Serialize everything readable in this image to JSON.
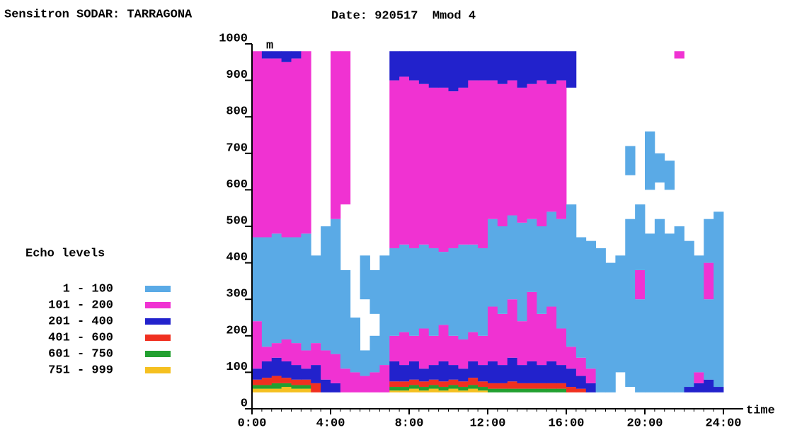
{
  "chart_data": {
    "type": "heatmap",
    "title": "Sensitron SODAR: TARRAGONA",
    "subtitle": "Date: 920517  Mmod 4",
    "y_label": "m",
    "x_label": "time",
    "xlim": [
      0,
      24
    ],
    "xticks": [
      {
        "value": 0,
        "label": "0:00"
      },
      {
        "value": 4,
        "label": "4:00"
      },
      {
        "value": 8,
        "label": "8:00"
      },
      {
        "value": 12,
        "label": "12:00"
      },
      {
        "value": 16,
        "label": "16:00"
      },
      {
        "value": 20,
        "label": "20:00"
      },
      {
        "value": 24,
        "label": "24:00"
      }
    ],
    "ylim": [
      0,
      1000
    ],
    "yticks": [
      0,
      100,
      200,
      300,
      400,
      500,
      600,
      700,
      800,
      900,
      1000
    ],
    "legend": {
      "title": "Echo levels",
      "levels": [
        {
          "name": "1 - 100",
          "color": "#5aaae6"
        },
        {
          "name": "101 - 200",
          "color": "#f032d2"
        },
        {
          "name": "201 - 400",
          "color": "#2222cc"
        },
        {
          "name": "401 - 600",
          "color": "#f03020"
        },
        {
          "name": "601 - 750",
          "color": "#22a030"
        },
        {
          "name": "751 - 999",
          "color": "#f5c020"
        }
      ]
    },
    "x": [
      0,
      0.5,
      1,
      1.5,
      2,
      2.5,
      3,
      3.5,
      4,
      4.5,
      5,
      5.5,
      6,
      6.5,
      7,
      7.5,
      8,
      8.5,
      9,
      9.5,
      10,
      10.5,
      11,
      11.5,
      12,
      12.5,
      13,
      13.5,
      14,
      14.5,
      15,
      15.5,
      16,
      16.5,
      17,
      17.5,
      18,
      18.5,
      19,
      19.5,
      20,
      20.5,
      21,
      21.5,
      22,
      22.5,
      23,
      23.5
    ],
    "segments": [
      [
        [
          5,
          45,
          55
        ],
        [
          4,
          55,
          65
        ],
        [
          3,
          65,
          80
        ],
        [
          2,
          80,
          110
        ],
        [
          1,
          110,
          240
        ],
        [
          0,
          240,
          470
        ],
        [
          1,
          470,
          980
        ]
      ],
      [
        [
          5,
          45,
          55
        ],
        [
          4,
          55,
          65
        ],
        [
          3,
          65,
          85
        ],
        [
          2,
          85,
          130
        ],
        [
          1,
          130,
          170
        ],
        [
          0,
          170,
          470
        ],
        [
          1,
          470,
          960
        ],
        [
          2,
          960,
          980
        ]
      ],
      [
        [
          5,
          45,
          55
        ],
        [
          4,
          55,
          70
        ],
        [
          3,
          70,
          90
        ],
        [
          2,
          90,
          140
        ],
        [
          1,
          140,
          180
        ],
        [
          0,
          180,
          480
        ],
        [
          1,
          480,
          960
        ],
        [
          2,
          960,
          980
        ]
      ],
      [
        [
          5,
          45,
          60
        ],
        [
          4,
          60,
          70
        ],
        [
          3,
          70,
          85
        ],
        [
          2,
          85,
          130
        ],
        [
          1,
          130,
          190
        ],
        [
          0,
          190,
          470
        ],
        [
          1,
          470,
          950
        ],
        [
          2,
          950,
          980
        ]
      ],
      [
        [
          5,
          45,
          55
        ],
        [
          4,
          55,
          65
        ],
        [
          3,
          65,
          80
        ],
        [
          2,
          80,
          120
        ],
        [
          1,
          120,
          180
        ],
        [
          0,
          180,
          470
        ],
        [
          1,
          470,
          960
        ],
        [
          2,
          960,
          980
        ]
      ],
      [
        [
          5,
          45,
          55
        ],
        [
          4,
          55,
          65
        ],
        [
          3,
          65,
          80
        ],
        [
          2,
          80,
          110
        ],
        [
          1,
          110,
          160
        ],
        [
          0,
          160,
          480
        ],
        [
          1,
          480,
          980
        ]
      ],
      [
        [
          3,
          45,
          70
        ],
        [
          2,
          70,
          120
        ],
        [
          1,
          120,
          180
        ],
        [
          0,
          180,
          420
        ]
      ],
      [
        [
          2,
          45,
          80
        ],
        [
          1,
          80,
          160
        ],
        [
          0,
          160,
          500
        ]
      ],
      [
        [
          2,
          45,
          70
        ],
        [
          1,
          70,
          150
        ],
        [
          0,
          150,
          520
        ],
        [
          1,
          520,
          980
        ]
      ],
      [
        [
          1,
          45,
          110
        ],
        [
          0,
          110,
          380
        ],
        [
          1,
          560,
          980
        ]
      ],
      [
        [
          1,
          45,
          100
        ],
        [
          0,
          100,
          250
        ]
      ],
      [
        [
          1,
          45,
          90
        ],
        [
          0,
          90,
          160
        ],
        [
          0,
          300,
          420
        ]
      ],
      [
        [
          1,
          45,
          100
        ],
        [
          0,
          100,
          200
        ],
        [
          0,
          260,
          380
        ]
      ],
      [
        [
          1,
          45,
          120
        ],
        [
          0,
          120,
          420
        ]
      ],
      [
        [
          5,
          45,
          50
        ],
        [
          4,
          50,
          60
        ],
        [
          3,
          60,
          75
        ],
        [
          2,
          75,
          130
        ],
        [
          1,
          130,
          200
        ],
        [
          0,
          200,
          440
        ],
        [
          1,
          440,
          900
        ],
        [
          2,
          900,
          980
        ]
      ],
      [
        [
          5,
          45,
          50
        ],
        [
          4,
          50,
          60
        ],
        [
          3,
          60,
          75
        ],
        [
          2,
          75,
          120
        ],
        [
          1,
          120,
          210
        ],
        [
          0,
          210,
          450
        ],
        [
          1,
          450,
          910
        ],
        [
          2,
          910,
          980
        ]
      ],
      [
        [
          5,
          45,
          55
        ],
        [
          4,
          55,
          65
        ],
        [
          3,
          65,
          80
        ],
        [
          2,
          80,
          130
        ],
        [
          1,
          130,
          200
        ],
        [
          0,
          200,
          440
        ],
        [
          1,
          440,
          900
        ],
        [
          2,
          900,
          980
        ]
      ],
      [
        [
          5,
          45,
          50
        ],
        [
          4,
          50,
          60
        ],
        [
          3,
          60,
          75
        ],
        [
          2,
          75,
          110
        ],
        [
          1,
          110,
          220
        ],
        [
          0,
          220,
          450
        ],
        [
          1,
          450,
          890
        ],
        [
          2,
          890,
          980
        ]
      ],
      [
        [
          5,
          45,
          55
        ],
        [
          4,
          55,
          65
        ],
        [
          3,
          65,
          80
        ],
        [
          2,
          80,
          120
        ],
        [
          1,
          120,
          200
        ],
        [
          0,
          200,
          440
        ],
        [
          1,
          440,
          880
        ],
        [
          2,
          880,
          980
        ]
      ],
      [
        [
          5,
          45,
          50
        ],
        [
          4,
          50,
          60
        ],
        [
          3,
          60,
          75
        ],
        [
          2,
          75,
          130
        ],
        [
          1,
          130,
          230
        ],
        [
          0,
          230,
          430
        ],
        [
          1,
          430,
          880
        ],
        [
          2,
          880,
          980
        ]
      ],
      [
        [
          5,
          45,
          55
        ],
        [
          4,
          55,
          65
        ],
        [
          3,
          65,
          80
        ],
        [
          2,
          80,
          120
        ],
        [
          1,
          120,
          200
        ],
        [
          0,
          200,
          440
        ],
        [
          1,
          440,
          870
        ],
        [
          2,
          870,
          980
        ]
      ],
      [
        [
          5,
          45,
          50
        ],
        [
          4,
          50,
          60
        ],
        [
          3,
          60,
          75
        ],
        [
          2,
          75,
          110
        ],
        [
          1,
          110,
          190
        ],
        [
          0,
          190,
          450
        ],
        [
          1,
          450,
          880
        ],
        [
          2,
          880,
          980
        ]
      ],
      [
        [
          5,
          45,
          55
        ],
        [
          4,
          55,
          65
        ],
        [
          3,
          65,
          85
        ],
        [
          2,
          85,
          130
        ],
        [
          1,
          130,
          210
        ],
        [
          0,
          210,
          450
        ],
        [
          1,
          450,
          900
        ],
        [
          2,
          900,
          980
        ]
      ],
      [
        [
          5,
          45,
          50
        ],
        [
          4,
          50,
          60
        ],
        [
          3,
          60,
          75
        ],
        [
          2,
          75,
          120
        ],
        [
          1,
          120,
          200
        ],
        [
          0,
          200,
          440
        ],
        [
          1,
          440,
          900
        ],
        [
          2,
          900,
          980
        ]
      ],
      [
        [
          4,
          45,
          55
        ],
        [
          3,
          55,
          70
        ],
        [
          2,
          70,
          130
        ],
        [
          1,
          130,
          280
        ],
        [
          0,
          280,
          520
        ],
        [
          1,
          520,
          900
        ],
        [
          2,
          900,
          980
        ]
      ],
      [
        [
          4,
          45,
          55
        ],
        [
          3,
          55,
          70
        ],
        [
          2,
          70,
          120
        ],
        [
          1,
          120,
          260
        ],
        [
          0,
          260,
          500
        ],
        [
          1,
          500,
          890
        ],
        [
          2,
          890,
          980
        ]
      ],
      [
        [
          4,
          45,
          55
        ],
        [
          3,
          55,
          75
        ],
        [
          2,
          75,
          140
        ],
        [
          1,
          140,
          300
        ],
        [
          0,
          300,
          530
        ],
        [
          1,
          530,
          900
        ],
        [
          2,
          900,
          980
        ]
      ],
      [
        [
          4,
          45,
          55
        ],
        [
          3,
          55,
          70
        ],
        [
          2,
          70,
          120
        ],
        [
          1,
          120,
          240
        ],
        [
          0,
          240,
          510
        ],
        [
          1,
          510,
          880
        ],
        [
          2,
          880,
          980
        ]
      ],
      [
        [
          4,
          45,
          55
        ],
        [
          3,
          55,
          70
        ],
        [
          2,
          70,
          130
        ],
        [
          1,
          130,
          320
        ],
        [
          0,
          320,
          520
        ],
        [
          1,
          520,
          890
        ],
        [
          2,
          890,
          980
        ]
      ],
      [
        [
          4,
          45,
          55
        ],
        [
          3,
          55,
          70
        ],
        [
          2,
          70,
          120
        ],
        [
          1,
          120,
          260
        ],
        [
          0,
          260,
          500
        ],
        [
          1,
          500,
          900
        ],
        [
          2,
          900,
          980
        ]
      ],
      [
        [
          4,
          45,
          55
        ],
        [
          3,
          55,
          70
        ],
        [
          2,
          70,
          130
        ],
        [
          1,
          130,
          280
        ],
        [
          0,
          280,
          540
        ],
        [
          1,
          540,
          890
        ],
        [
          2,
          890,
          980
        ]
      ],
      [
        [
          4,
          45,
          55
        ],
        [
          3,
          55,
          70
        ],
        [
          2,
          70,
          120
        ],
        [
          1,
          120,
          220
        ],
        [
          0,
          220,
          520
        ],
        [
          1,
          520,
          900
        ],
        [
          2,
          900,
          980
        ]
      ],
      [
        [
          3,
          45,
          60
        ],
        [
          2,
          60,
          110
        ],
        [
          1,
          110,
          170
        ],
        [
          0,
          170,
          560
        ],
        [
          2,
          880,
          980
        ]
      ],
      [
        [
          3,
          45,
          55
        ],
        [
          2,
          55,
          90
        ],
        [
          1,
          90,
          140
        ],
        [
          0,
          140,
          470
        ]
      ],
      [
        [
          2,
          45,
          70
        ],
        [
          1,
          70,
          110
        ],
        [
          0,
          110,
          460
        ]
      ],
      [
        [
          0,
          45,
          440
        ]
      ],
      [
        [
          0,
          45,
          400
        ]
      ],
      [
        [
          0,
          100,
          420
        ]
      ],
      [
        [
          0,
          60,
          520
        ],
        [
          0,
          640,
          720
        ]
      ],
      [
        [
          0,
          45,
          300
        ],
        [
          1,
          300,
          380
        ],
        [
          0,
          380,
          560
        ]
      ],
      [
        [
          0,
          45,
          480
        ],
        [
          0,
          600,
          760
        ]
      ],
      [
        [
          0,
          45,
          520
        ],
        [
          0,
          620,
          700
        ]
      ],
      [
        [
          0,
          45,
          480
        ],
        [
          0,
          600,
          680
        ]
      ],
      [
        [
          0,
          45,
          500
        ],
        [
          1,
          960,
          980
        ]
      ],
      [
        [
          2,
          45,
          60
        ],
        [
          0,
          60,
          460
        ]
      ],
      [
        [
          2,
          45,
          70
        ],
        [
          1,
          70,
          100
        ],
        [
          0,
          100,
          420
        ]
      ],
      [
        [
          2,
          45,
          80
        ],
        [
          0,
          80,
          300
        ],
        [
          1,
          300,
          400
        ],
        [
          0,
          400,
          520
        ]
      ],
      [
        [
          2,
          45,
          60
        ],
        [
          0,
          60,
          540
        ]
      ]
    ]
  }
}
